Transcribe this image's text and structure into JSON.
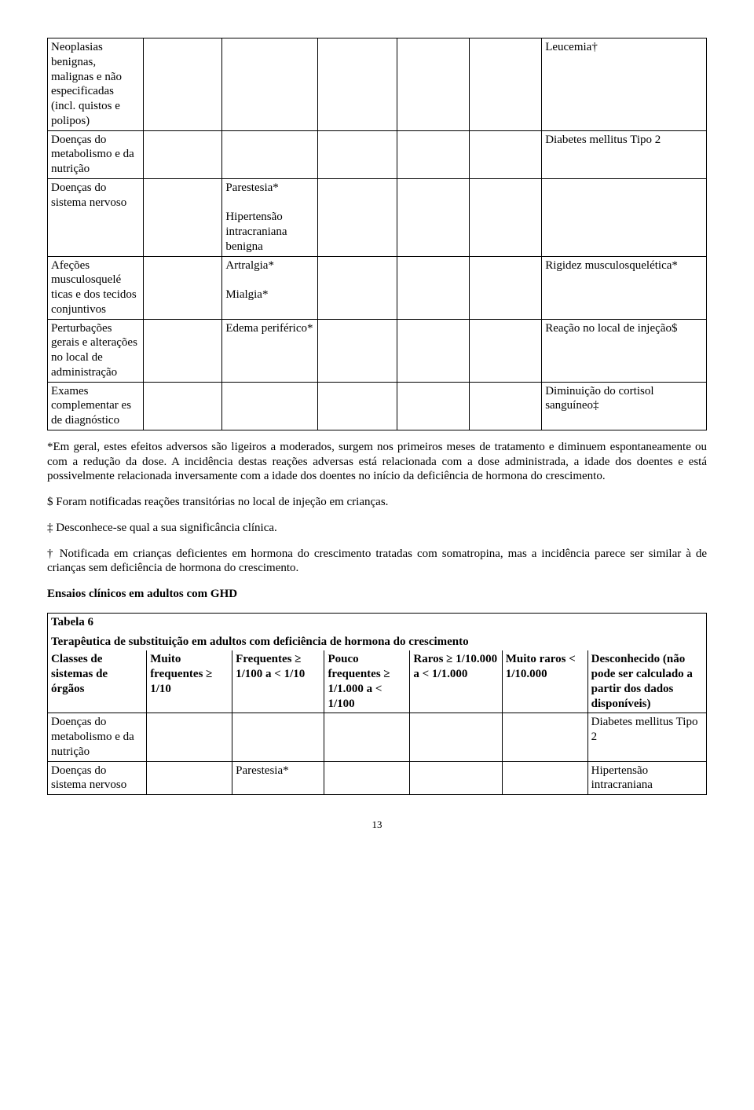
{
  "table1": {
    "rows": [
      {
        "c0": "Neoplasias benignas, malignas e não especificadas (incl. quistos e polipos)",
        "c1": "",
        "c2": "",
        "c3": "",
        "c4": "",
        "c5": "",
        "c6": "Leucemia†"
      },
      {
        "c0": "Doenças do metabolismo e da nutrição",
        "c1": "",
        "c2": "",
        "c3": "",
        "c4": "",
        "c5": "",
        "c6": "Diabetes mellitus Tipo 2"
      },
      {
        "c0": "Doenças do sistema nervoso",
        "c1": "",
        "c2": "Parestesia*\n\nHipertensão intracraniana benigna",
        "c3": "",
        "c4": "",
        "c5": "",
        "c6": ""
      },
      {
        "c0": "Afeções musculosquelé ticas e dos tecidos conjuntivos",
        "c1": "",
        "c2": "Artralgia*\n\nMialgia*",
        "c3": "",
        "c4": "",
        "c5": "",
        "c6": "Rigidez musculosquelética*"
      },
      {
        "c0": "Perturbações gerais e alterações no local de administração",
        "c1": "",
        "c2": "Edema periférico*",
        "c3": "",
        "c4": "",
        "c5": "",
        "c6": "Reação no local de injeção$"
      },
      {
        "c0": "Exames complementar es de diagnóstico",
        "c1": "",
        "c2": "",
        "c3": "",
        "c4": "",
        "c5": "",
        "c6": "Diminuição do cortisol sanguíneo‡"
      }
    ]
  },
  "para1": "*Em geral, estes efeitos adversos são ligeiros a moderados, surgem nos primeiros meses de tratamento e diminuem espontaneamente ou com a redução da dose. A incidência destas reações adversas está relacionada com a dose administrada, a idade dos doentes e está possivelmente relacionada inversamente com a idade dos doentes no início da deficiência de hormona do crescimento.",
  "para2": "$ Foram notificadas reações transitórias no local de injeção em crianças.",
  "para3": "‡ Desconhece-se qual a sua significância clínica.",
  "para4": "† Notificada em crianças deficientes em hormona do crescimento tratadas com somatropina, mas a incidência parece ser similar à de crianças sem deficiência de hormona do crescimento.",
  "heading1": "Ensaios clínicos em adultos com GHD",
  "table2": {
    "title": "Tabela 6",
    "subtitle": "Terapêutica de substituição em adultos com deficiência de hormona do crescimento",
    "header": [
      "Classes de sistemas de órgãos",
      "Muito frequentes ≥ 1/10",
      "Frequentes ≥ 1/100 a < 1/10",
      "Pouco frequentes ≥ 1/1.000 a < 1/100",
      "Raros ≥ 1/10.000 a < 1/1.000",
      "Muito raros < 1/10.000",
      "Desconhecido (não pode ser calculado a partir dos dados disponíveis)"
    ],
    "rows": [
      {
        "c0": "Doenças do metabolismo e da nutrição",
        "c1": "",
        "c2": "",
        "c3": "",
        "c4": "",
        "c5": "",
        "c6": "Diabetes mellitus Tipo 2"
      },
      {
        "c0": "Doenças do sistema nervoso",
        "c1": "",
        "c2": "Parestesia*",
        "c3": "",
        "c4": "",
        "c5": "",
        "c6": "Hipertensão intracraniana"
      }
    ]
  },
  "pagenum": "13"
}
